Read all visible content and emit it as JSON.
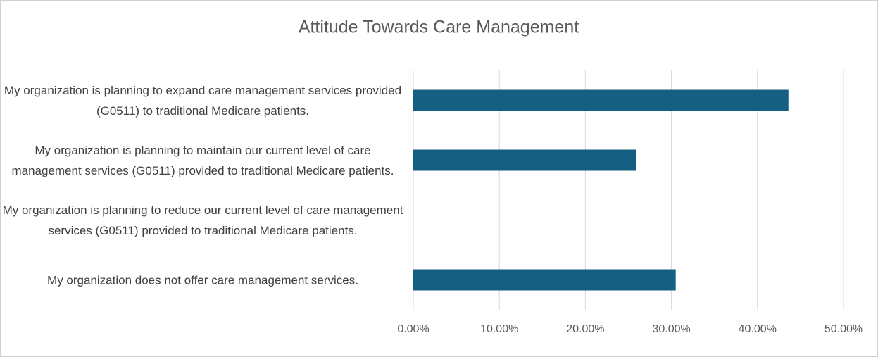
{
  "chart_data": {
    "type": "bar",
    "orientation": "horizontal",
    "title": "Attitude Towards Care Management",
    "categories": [
      "My organization is planning to expand care management services provided (G0511) to traditional Medicare patients.",
      "My organization is planning to maintain our current level of care management services (G0511) provided to traditional Medicare patients.",
      "My organization is planning to reduce our current level of care management services (G0511) provided to traditional Medicare patients.",
      "My organization does not offer care management services."
    ],
    "values": [
      43.6,
      25.9,
      0,
      30.5
    ],
    "color": "#156082",
    "xlim": [
      0,
      50
    ],
    "xticks": [
      {
        "value": 0,
        "label": "0.00%"
      },
      {
        "value": 10,
        "label": "10.00%"
      },
      {
        "value": 20,
        "label": "20.00%"
      },
      {
        "value": 30,
        "label": "30.00%"
      },
      {
        "value": 40,
        "label": "40.00%"
      },
      {
        "value": 50,
        "label": "50.00%"
      }
    ],
    "grid": true
  }
}
